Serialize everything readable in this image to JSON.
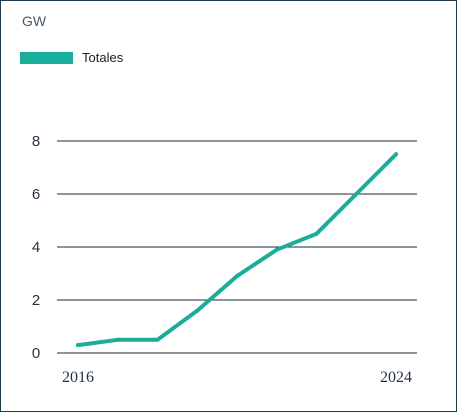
{
  "chart_data": {
    "type": "line",
    "unit_label": "GW",
    "x": [
      2016,
      2017,
      2018,
      2019,
      2020,
      2021,
      2022,
      2023,
      2024
    ],
    "series": [
      {
        "name": "Totales",
        "values": [
          0.3,
          0.5,
          0.5,
          1.6,
          2.9,
          3.9,
          4.5,
          6.0,
          7.5
        ]
      }
    ],
    "x_tick_labels": [
      "2016",
      "2024"
    ],
    "y_ticks": [
      0,
      2,
      4,
      6,
      8
    ],
    "ylim": [
      0,
      8
    ],
    "grid": "horizontal",
    "legend_position": "top-left",
    "colors": {
      "series": "#1aae9a",
      "grid": "#1b2a3a",
      "border": "#1f3a4a"
    }
  }
}
